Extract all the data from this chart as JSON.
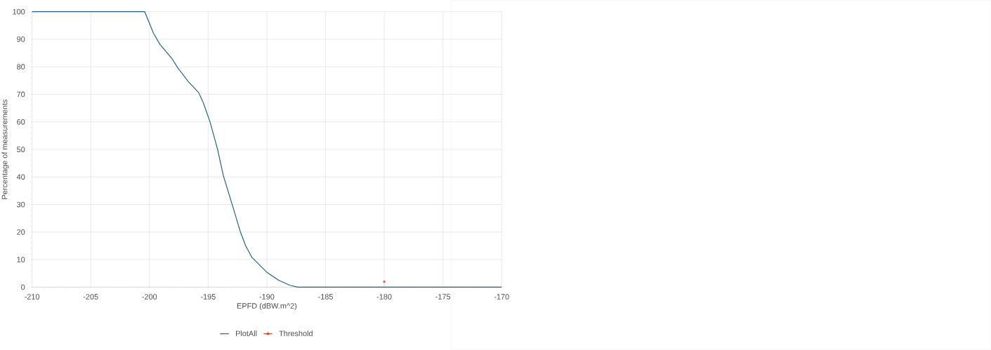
{
  "chart_data": {
    "type": "line",
    "xlabel": "EPFD (dBW.m^2)",
    "ylabel": "Percentage of measurements",
    "xlim": [
      -210,
      -170
    ],
    "ylim": [
      0,
      100
    ],
    "xticks": [
      -210,
      -205,
      -200,
      -195,
      -190,
      -185,
      -180,
      -175,
      -170
    ],
    "yticks": [
      0,
      10,
      20,
      30,
      40,
      50,
      60,
      70,
      80,
      90,
      100
    ],
    "grid": true,
    "legend": "bottom",
    "series": [
      {
        "name": "PlotAll",
        "color": "#1f5f80",
        "marker": "none",
        "x": [
          -210,
          -200.4,
          -199.98,
          -199.66,
          -199.1,
          -198.1,
          -197.6,
          -196.7,
          -195.8,
          -195.4,
          -194.86,
          -194.2,
          -193.7,
          -192.9,
          -192.25,
          -191.8,
          -191.27,
          -189.97,
          -189.0,
          -188.0,
          -187.35,
          -170
        ],
        "values": [
          100,
          100,
          95.6,
          92.2,
          88.1,
          83.1,
          79.7,
          74.7,
          70.6,
          66.8,
          60.3,
          50.1,
          40.4,
          29.3,
          20.0,
          15.0,
          10.8,
          5.3,
          2.5,
          0.6,
          0,
          0
        ]
      },
      {
        "name": "Threshold",
        "color": "#ff2000",
        "type": "scatter",
        "marker": "triangle",
        "x": [
          -180
        ],
        "values": [
          2
        ]
      }
    ]
  }
}
